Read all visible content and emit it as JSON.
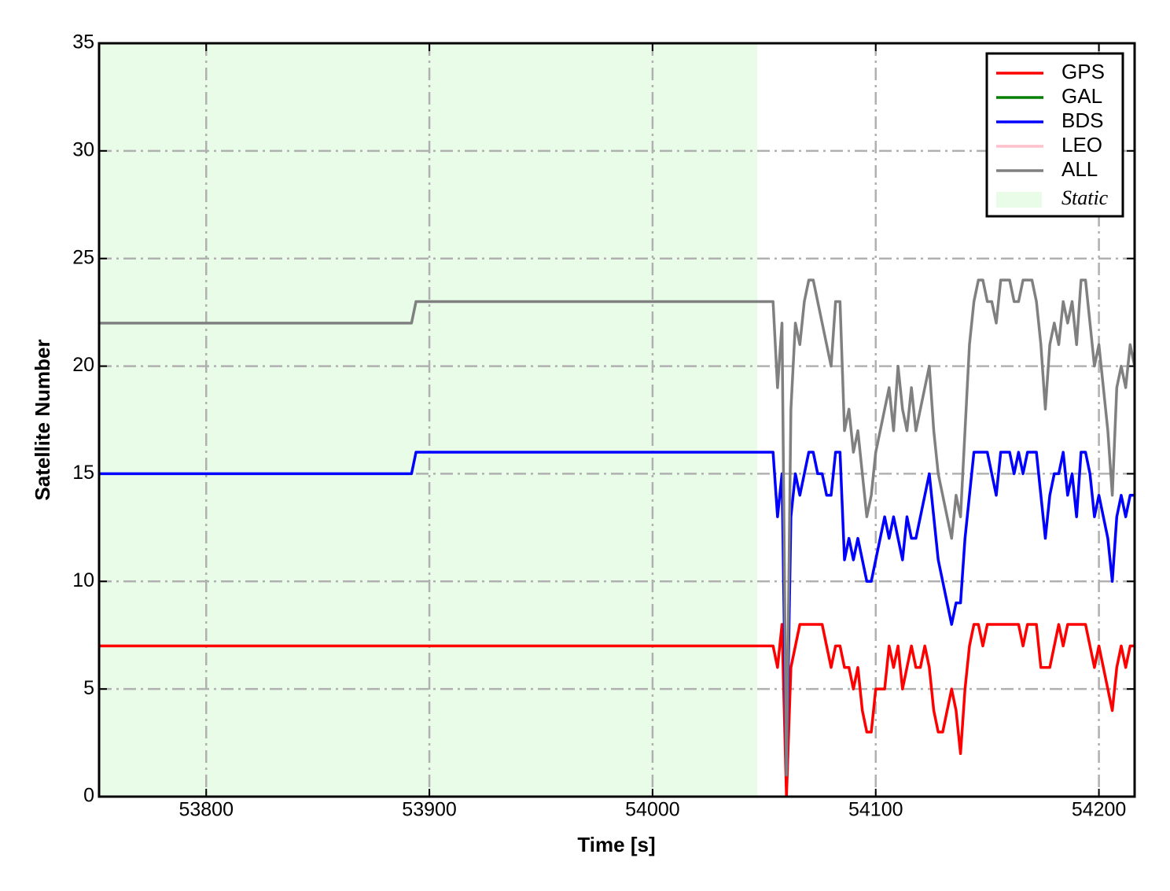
{
  "chart_data": {
    "type": "line",
    "xlabel": "Time [s]",
    "ylabel": "Satellite Number",
    "xlim": [
      53752,
      54216
    ],
    "ylim": [
      0,
      35
    ],
    "xticks": [
      53800,
      53900,
      54000,
      54100,
      54200
    ],
    "yticks": [
      0,
      5,
      10,
      15,
      20,
      25,
      30,
      35
    ],
    "grid": true,
    "legend": "upper right",
    "shaded": {
      "name": "Static",
      "color": "#e8fce8",
      "x": [
        53752,
        54047
      ]
    },
    "x": [
      53752,
      53892,
      53894,
      54054,
      54056,
      54058,
      54060,
      54062,
      54064,
      54066,
      54068,
      54070,
      54072,
      54074,
      54076,
      54078,
      54080,
      54082,
      54084,
      54086,
      54088,
      54090,
      54092,
      54094,
      54096,
      54098,
      54100,
      54102,
      54104,
      54106,
      54108,
      54110,
      54112,
      54114,
      54116,
      54118,
      54120,
      54122,
      54124,
      54126,
      54128,
      54130,
      54132,
      54134,
      54136,
      54138,
      54140,
      54142,
      54144,
      54146,
      54148,
      54150,
      54152,
      54154,
      54156,
      54158,
      54160,
      54162,
      54164,
      54166,
      54168,
      54170,
      54172,
      54174,
      54176,
      54178,
      54180,
      54182,
      54184,
      54186,
      54188,
      54190,
      54192,
      54194,
      54196,
      54198,
      54200,
      54202,
      54204,
      54206,
      54208,
      54210,
      54212,
      54214,
      54216
    ],
    "series": [
      {
        "name": "GPS",
        "color": "#ff0000",
        "values": [
          7,
          7,
          7,
          7,
          6,
          8,
          0,
          6,
          7,
          8,
          8,
          8,
          8,
          8,
          8,
          7,
          6,
          7,
          7,
          6,
          6,
          5,
          6,
          4,
          3,
          3,
          5,
          5,
          5,
          7,
          6,
          7,
          5,
          6,
          7,
          6,
          6,
          7,
          6,
          4,
          3,
          3,
          4,
          5,
          4,
          2,
          5,
          7,
          8,
          8,
          7,
          8,
          8,
          8,
          8,
          8,
          8,
          8,
          8,
          7,
          8,
          8,
          8,
          6,
          6,
          6,
          7,
          8,
          7,
          8,
          8,
          8,
          8,
          8,
          7,
          6,
          7,
          6,
          5,
          4,
          6,
          7,
          6,
          7,
          7
        ]
      },
      {
        "name": "GAL",
        "color": "#007f00",
        "values": [
          null,
          null,
          null,
          null,
          null,
          null,
          null,
          null,
          null,
          null,
          null,
          null,
          null,
          null,
          null,
          null,
          null,
          null,
          null,
          null,
          null,
          null,
          null,
          null,
          null,
          null,
          null,
          null,
          null,
          null,
          null,
          null,
          null,
          null,
          null,
          null,
          null,
          null,
          null,
          null,
          null,
          null,
          null,
          null,
          null,
          null,
          null,
          null,
          null,
          null,
          null,
          null,
          null,
          null,
          null,
          null,
          null,
          null,
          null,
          null,
          null,
          null,
          null,
          null,
          null,
          null,
          null,
          null,
          null,
          null,
          null,
          null,
          null,
          null,
          null,
          null,
          null,
          null,
          null,
          null,
          null,
          null,
          null,
          null,
          null
        ]
      },
      {
        "name": "BDS",
        "color": "#0000ff",
        "values": [
          15,
          15,
          16,
          16,
          13,
          15,
          1,
          13,
          15,
          14,
          15,
          16,
          16,
          15,
          15,
          14,
          14,
          16,
          16,
          11,
          12,
          11,
          12,
          11,
          10,
          10,
          11,
          12,
          13,
          12,
          13,
          12,
          11,
          13,
          12,
          12,
          13,
          14,
          15,
          13,
          11,
          10,
          9,
          8,
          9,
          9,
          12,
          14,
          16,
          16,
          16,
          16,
          15,
          14,
          16,
          16,
          16,
          15,
          16,
          15,
          16,
          16,
          16,
          14,
          12,
          14,
          15,
          15,
          16,
          14,
          15,
          13,
          16,
          16,
          15,
          13,
          14,
          13,
          12,
          10,
          13,
          14,
          13,
          14,
          14
        ]
      },
      {
        "name": "LEO",
        "color": "#ffc0cb",
        "values": [
          null,
          null,
          null,
          null,
          null,
          null,
          null,
          null,
          null,
          null,
          null,
          null,
          null,
          null,
          null,
          null,
          null,
          null,
          null,
          null,
          null,
          null,
          null,
          null,
          null,
          null,
          null,
          null,
          null,
          null,
          null,
          null,
          null,
          null,
          null,
          null,
          null,
          null,
          null,
          null,
          null,
          null,
          null,
          null,
          null,
          null,
          null,
          null,
          null,
          null,
          null,
          null,
          null,
          null,
          null,
          null,
          null,
          null,
          null,
          null,
          null,
          null,
          null,
          null,
          null,
          null,
          null,
          null,
          null,
          null,
          null,
          null,
          null,
          null,
          null,
          null,
          null,
          null,
          null,
          null,
          null,
          null,
          null,
          null,
          null
        ]
      },
      {
        "name": "ALL",
        "color": "#808080",
        "values": [
          22,
          22,
          23,
          23,
          19,
          22,
          1,
          18,
          22,
          21,
          23,
          24,
          24,
          23,
          22,
          21,
          20,
          23,
          23,
          17,
          18,
          16,
          17,
          15,
          13,
          14,
          16,
          17,
          18,
          19,
          17,
          20,
          18,
          17,
          19,
          17,
          18,
          19,
          20,
          17,
          15,
          14,
          13,
          12,
          14,
          13,
          17,
          21,
          23,
          24,
          24,
          23,
          23,
          22,
          24,
          24,
          24,
          23,
          23,
          24,
          24,
          24,
          23,
          21,
          18,
          21,
          22,
          21,
          23,
          22,
          23,
          21,
          24,
          24,
          22,
          20,
          21,
          19,
          17,
          14,
          19,
          20,
          19,
          21,
          20
        ]
      }
    ]
  }
}
